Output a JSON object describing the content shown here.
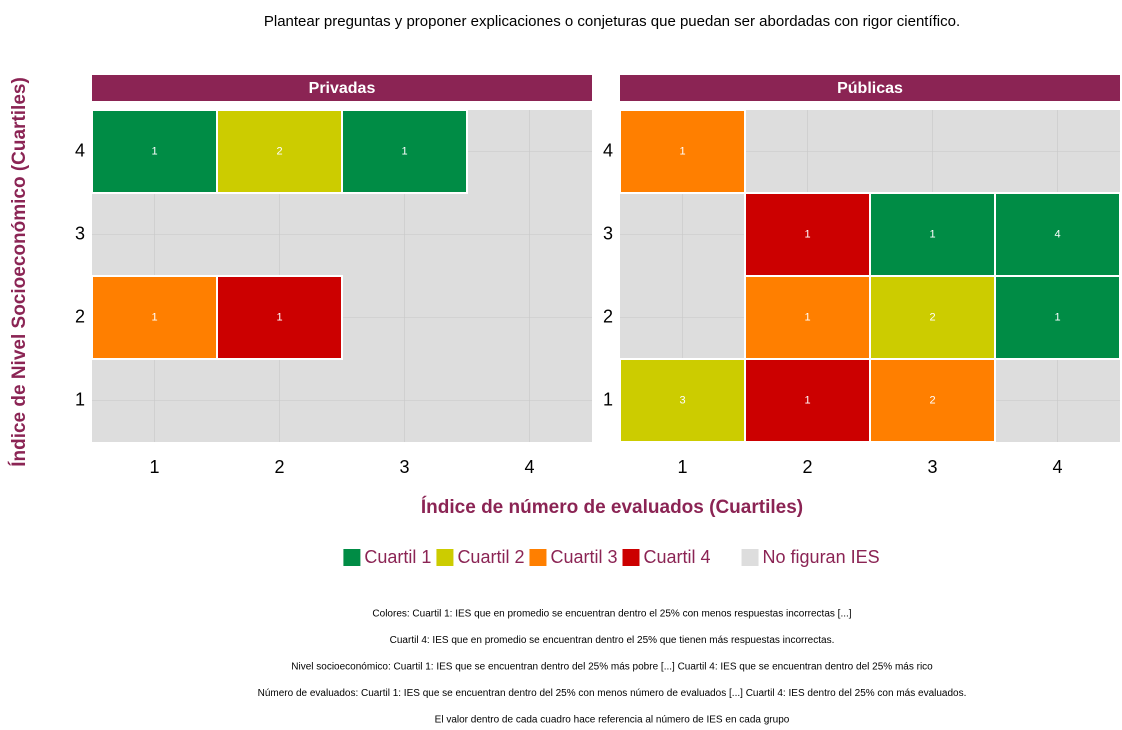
{
  "chart_data": {
    "type": "heatmap",
    "title": "Plantear preguntas y proponer explicaciones o conjeturas que puedan ser abordadas con rigor científico.",
    "x_label": "Índice de número de evaluados (Cuartiles)",
    "y_label": "Índice de Nivel Socioeconómico (Cuartiles)",
    "xlim": [
      0.5,
      4.5
    ],
    "ylim": [
      0.5,
      4.5
    ],
    "xticks": [
      1,
      2,
      3,
      4
    ],
    "yticks": [
      1,
      2,
      3,
      4
    ],
    "empty_color": "#dddddd",
    "panels": [
      {
        "title": "Privadas",
        "cells": [
          {
            "x": 1,
            "y": 4,
            "value": 1,
            "group": "Cuartil 1"
          },
          {
            "x": 2,
            "y": 4,
            "value": 2,
            "group": "Cuartil 2"
          },
          {
            "x": 3,
            "y": 4,
            "value": 1,
            "group": "Cuartil 1"
          },
          {
            "x": 1,
            "y": 2,
            "value": 1,
            "group": "Cuartil 3"
          },
          {
            "x": 2,
            "y": 2,
            "value": 1,
            "group": "Cuartil 4"
          }
        ]
      },
      {
        "title": "Públicas",
        "cells": [
          {
            "x": 1,
            "y": 4,
            "value": 1,
            "group": "Cuartil 3"
          },
          {
            "x": 2,
            "y": 3,
            "value": 1,
            "group": "Cuartil 4"
          },
          {
            "x": 3,
            "y": 3,
            "value": 1,
            "group": "Cuartil 1"
          },
          {
            "x": 4,
            "y": 3,
            "value": 4,
            "group": "Cuartil 1"
          },
          {
            "x": 2,
            "y": 2,
            "value": 1,
            "group": "Cuartil 3"
          },
          {
            "x": 3,
            "y": 2,
            "value": 2,
            "group": "Cuartil 2"
          },
          {
            "x": 4,
            "y": 2,
            "value": 1,
            "group": "Cuartil 1"
          },
          {
            "x": 1,
            "y": 1,
            "value": 3,
            "group": "Cuartil 2"
          },
          {
            "x": 2,
            "y": 1,
            "value": 1,
            "group": "Cuartil 4"
          },
          {
            "x": 3,
            "y": 1,
            "value": 2,
            "group": "Cuartil 3"
          }
        ]
      }
    ],
    "legend": [
      {
        "name": "Cuartil 1",
        "color": "#008c45"
      },
      {
        "name": "Cuartil 2",
        "color": "#cccc00"
      },
      {
        "name": "Cuartil 3",
        "color": "#ff7f00"
      },
      {
        "name": "Cuartil 4",
        "color": "#cc0000"
      },
      {
        "name": "No figuran IES",
        "color": "#dddddd"
      }
    ],
    "notes": [
      "Colores: Cuartil 1:  IES que en promedio se encuentran dentro el 25% con menos respuestas incorrectas [...]",
      "Cuartil 4: IES que en promedio se encuentran dentro el 25% que tienen más respuestas incorrectas.",
      "Nivel socioeconómico: Cuartil 1: IES que se encuentran dentro del 25% más pobre [...] Cuartil 4: IES que se encuentran dentro del 25% más rico",
      "Número de evaluados: Cuartil 1: IES que se encuentran dentro del 25% con menos número de evaluados [...] Cuartil 4: IES dentro del 25% con más evaluados.",
      "El valor dentro de cada cuadro hace referencia al número de IES en cada grupo"
    ]
  }
}
